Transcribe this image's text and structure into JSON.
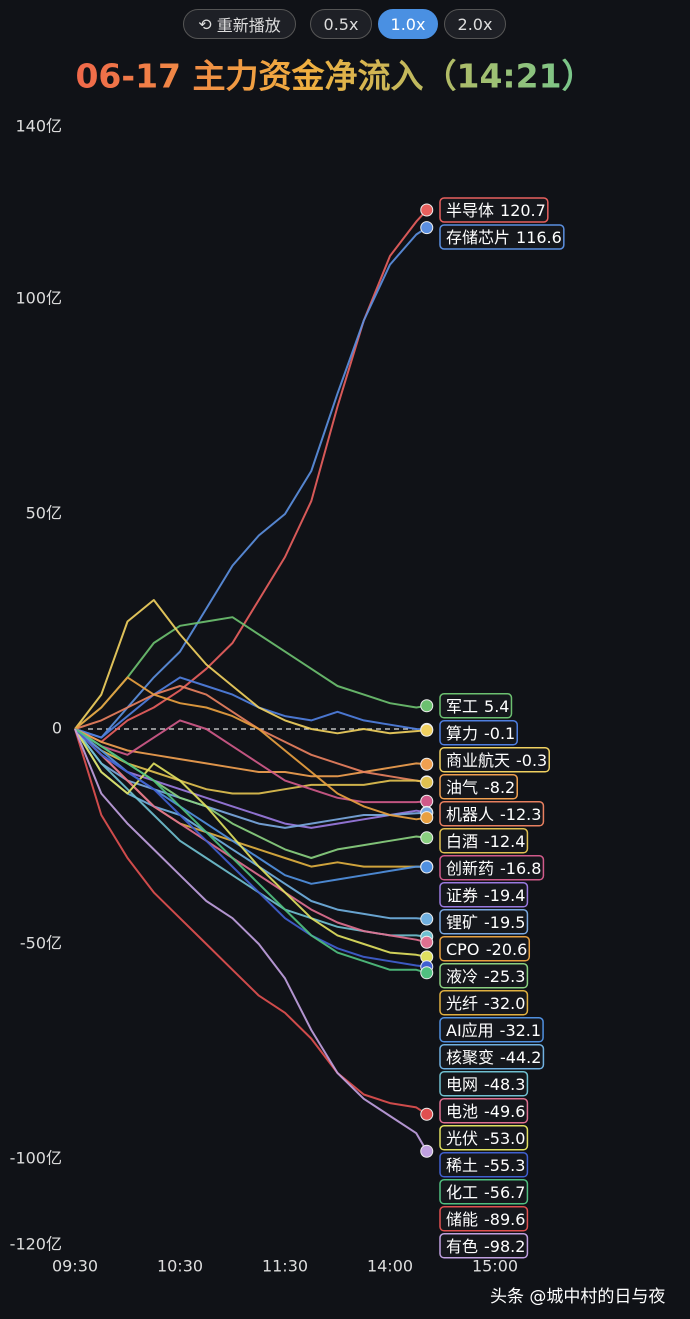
{
  "controls": {
    "buttons": [
      "重新播放",
      "0.5x",
      "1.0x",
      "2.0x"
    ]
  },
  "watermark": "头条 @城中村的日与夜",
  "chart_data": {
    "type": "line",
    "title": "06-17 主力资金净流入（14:21）",
    "x": [
      0,
      15,
      30,
      45,
      60,
      75,
      90,
      105,
      120,
      135,
      150,
      165,
      180,
      195,
      201
    ],
    "xlim": [
      0,
      240
    ],
    "xticks": [
      {
        "value": 0,
        "label": "09:30"
      },
      {
        "value": 60,
        "label": "10:30"
      },
      {
        "value": 120,
        "label": "11:30"
      },
      {
        "value": 180,
        "label": "14:00"
      },
      {
        "value": 240,
        "label": "15:00"
      }
    ],
    "ylim": [
      -120,
      140
    ],
    "yticks": [
      {
        "value": 140,
        "label": "140亿"
      },
      {
        "value": 100,
        "label": "100亿"
      },
      {
        "value": 50,
        "label": "50亿"
      },
      0,
      {
        "value": -50,
        "label": "-50亿"
      },
      {
        "value": -100,
        "label": "-100亿"
      },
      {
        "value": -120,
        "label": "-120亿"
      }
    ],
    "series": [
      {
        "name": "半导体",
        "color": "#e8605e",
        "values": [
          0,
          -3,
          2,
          5,
          9,
          14,
          20,
          30,
          40,
          53,
          75,
          95,
          110,
          118,
          120.7
        ]
      },
      {
        "name": "存储芯片",
        "color": "#5b8fe0",
        "values": [
          0,
          -2,
          5,
          12,
          18,
          28,
          38,
          45,
          50,
          60,
          78,
          95,
          108,
          115,
          116.6
        ]
      },
      {
        "name": "军工",
        "color": "#6cc070",
        "values": [
          0,
          5,
          12,
          20,
          24,
          25,
          26,
          22,
          18,
          14,
          10,
          8,
          6,
          5,
          5.4
        ]
      },
      {
        "name": "算力",
        "color": "#4f7fe0",
        "values": [
          0,
          -2,
          3,
          8,
          12,
          10,
          8,
          5,
          3,
          2,
          4,
          2,
          1,
          0,
          -0.1
        ]
      },
      {
        "name": "商业航天",
        "color": "#f0d060",
        "values": [
          0,
          8,
          25,
          30,
          22,
          15,
          10,
          5,
          2,
          0,
          -1,
          0,
          -1,
          -0.5,
          -0.3
        ]
      },
      {
        "name": "油气",
        "color": "#f0a050",
        "values": [
          0,
          -3,
          -5,
          -6,
          -7,
          -8,
          -9,
          -10,
          -10,
          -11,
          -11,
          -10,
          -9,
          -8,
          -8.2
        ]
      },
      {
        "name": "机器人",
        "color": "#e88060",
        "values": [
          0,
          2,
          5,
          8,
          10,
          8,
          4,
          0,
          -3,
          -6,
          -8,
          -10,
          -11,
          -12,
          -12.3
        ]
      },
      {
        "name": "白酒",
        "color": "#e0c050",
        "values": [
          0,
          -5,
          -8,
          -10,
          -12,
          -14,
          -15,
          -15,
          -14,
          -13,
          -13,
          -13,
          -12,
          -12,
          -12.4
        ]
      },
      {
        "name": "创新药",
        "color": "#d05a8a",
        "values": [
          0,
          -4,
          -6,
          -2,
          2,
          0,
          -4,
          -8,
          -12,
          -14,
          -16,
          -17,
          -17,
          -17,
          -16.8
        ]
      },
      {
        "name": "证券",
        "color": "#9a7ae0",
        "values": [
          0,
          -6,
          -10,
          -12,
          -14,
          -16,
          -18,
          -20,
          -22,
          -23,
          -22,
          -21,
          -20,
          -19,
          -19.4
        ]
      },
      {
        "name": "锂矿",
        "color": "#7aa8e0",
        "values": [
          0,
          -8,
          -12,
          -14,
          -16,
          -18,
          -20,
          -22,
          -23,
          -22,
          -21,
          -20,
          -20,
          -19.6,
          -19.5
        ]
      },
      {
        "name": "CPO",
        "color": "#e8a040",
        "values": [
          0,
          5,
          12,
          8,
          6,
          5,
          3,
          0,
          -5,
          -10,
          -15,
          -18,
          -20,
          -21,
          -20.6
        ]
      },
      {
        "name": "液冷",
        "color": "#8ad080",
        "values": [
          0,
          -4,
          -8,
          -12,
          -16,
          -18,
          -22,
          -25,
          -28,
          -30,
          -28,
          -27,
          -26,
          -25,
          -25.3
        ]
      },
      {
        "name": "光纤",
        "color": "#e0b040",
        "values": [
          0,
          -6,
          -12,
          -18,
          -22,
          -24,
          -26,
          -28,
          -30,
          -32,
          -31,
          -32,
          -32,
          -32,
          -32
        ],
        "value_labels": [
          null,
          null,
          null,
          null,
          null,
          null,
          null,
          null,
          null,
          null,
          null,
          null,
          null,
          null,
          "-32.0"
        ]
      },
      {
        "name": "AI应用",
        "color": "#5090e0",
        "values": [
          0,
          -5,
          -10,
          -14,
          -18,
          -22,
          -26,
          -30,
          -34,
          -36,
          -35,
          -34,
          -33,
          -32,
          -32.1
        ]
      },
      {
        "name": "核聚变",
        "color": "#70b0e0",
        "values": [
          0,
          -10,
          -15,
          -18,
          -20,
          -24,
          -28,
          -32,
          -36,
          -40,
          -42,
          -43,
          -44,
          -44,
          -44.2
        ]
      },
      {
        "name": "电网",
        "color": "#70c0d0",
        "values": [
          0,
          -8,
          -14,
          -20,
          -26,
          -30,
          -34,
          -38,
          -42,
          -44,
          -46,
          -47,
          -48,
          -48,
          -48.3
        ]
      },
      {
        "name": "电池",
        "color": "#e07090",
        "values": [
          0,
          -6,
          -12,
          -18,
          -22,
          -26,
          -30,
          -34,
          -38,
          -42,
          -45,
          -47,
          -48,
          -49,
          -49.6
        ]
      },
      {
        "name": "光伏",
        "color": "#e0e060",
        "values": [
          0,
          -10,
          -15,
          -8,
          -12,
          -18,
          -25,
          -32,
          -38,
          -44,
          -48,
          -50,
          -52,
          -52.5,
          -53
        ],
        "value_labels": [
          null,
          null,
          null,
          null,
          null,
          null,
          null,
          null,
          null,
          null,
          null,
          null,
          null,
          null,
          "-53.0"
        ]
      },
      {
        "name": "稀土",
        "color": "#4060d0",
        "values": [
          0,
          -6,
          -10,
          -14,
          -20,
          -26,
          -32,
          -38,
          -44,
          -48,
          -51,
          -53,
          -54,
          -55,
          -55.3
        ]
      },
      {
        "name": "化工",
        "color": "#50c080",
        "values": [
          0,
          -4,
          -8,
          -12,
          -18,
          -24,
          -30,
          -36,
          -42,
          -48,
          -52,
          -54,
          -56,
          -56,
          -56.7
        ]
      },
      {
        "name": "储能",
        "color": "#e05050",
        "values": [
          0,
          -20,
          -30,
          -38,
          -44,
          -50,
          -56,
          -62,
          -66,
          -72,
          -80,
          -85,
          -87,
          -88,
          -89.6
        ]
      },
      {
        "name": "有色",
        "color": "#c0a0e0",
        "values": [
          0,
          -15,
          -22,
          -28,
          -34,
          -40,
          -44,
          -50,
          -58,
          -70,
          -80,
          -86,
          -90,
          -94,
          -98.2
        ]
      }
    ]
  }
}
